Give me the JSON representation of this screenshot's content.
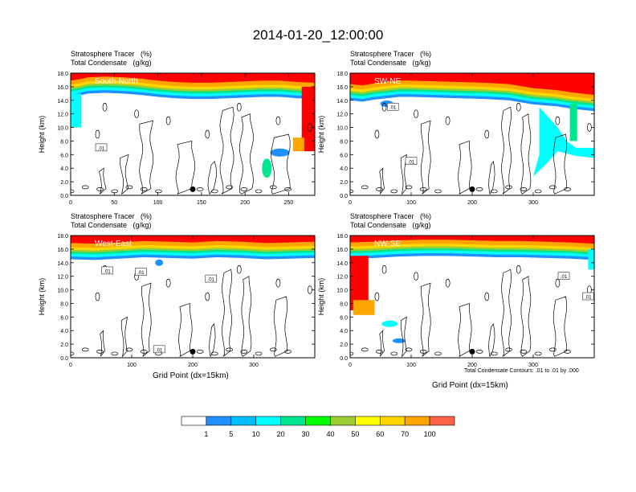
{
  "title": "2014-01-20_12:00:00",
  "panel_header": {
    "line1": "Stratosphere Tracer   (%)",
    "line2": "Total Condensate   (g/kg)"
  },
  "xlabel": "Grid Point (dx=15km)",
  "ylabel": "Height (km)",
  "footnote": "Total Condensate Contours: .01 to .01 by .000",
  "contour_label": ".01",
  "colors": {
    "levels": [
      "#ffffff",
      "#1e90ff",
      "#00bfff",
      "#00ffff",
      "#00e68c",
      "#00ff00",
      "#9acd32",
      "#ffff00",
      "#ffd700",
      "#ffa500",
      "#ff6347",
      "#ff0000"
    ]
  },
  "chart_data": [
    {
      "type": "heatmap",
      "panel": "South-North",
      "label": "South-North",
      "xlim": [
        0,
        280
      ],
      "ylim": [
        0,
        18
      ],
      "xticks": [
        0,
        50,
        100,
        150,
        200,
        250
      ],
      "yticks": [
        0.0,
        2.0,
        4.0,
        6.0,
        8.0,
        10.0,
        12.0,
        14.0,
        16.0,
        18.0
      ],
      "ytick_labels": [
        "0.0",
        "2.0",
        "4.0",
        "6.0",
        "8.0",
        "10.0",
        "12.0",
        "14.0",
        "16.0",
        "18.0"
      ],
      "marker_x": 140,
      "tropopause": [
        [
          0,
          15.3
        ],
        [
          10,
          15.5
        ],
        [
          20,
          15.8
        ],
        [
          40,
          15.9
        ],
        [
          60,
          15.8
        ],
        [
          80,
          15.6
        ],
        [
          100,
          15.3
        ],
        [
          120,
          15.1
        ],
        [
          140,
          15.0
        ],
        [
          160,
          15.0
        ],
        [
          180,
          15.1
        ],
        [
          200,
          15.2
        ],
        [
          220,
          15.3
        ],
        [
          240,
          15.3
        ],
        [
          260,
          15.1
        ],
        [
          280,
          15.0
        ]
      ],
      "contour_labels_x": [
        35
      ],
      "contour_labels_y": [
        7.0
      ]
    },
    {
      "type": "heatmap",
      "panel": "SW-NE",
      "label": "SW-NE",
      "xlim": [
        0,
        400
      ],
      "ylim": [
        0,
        18
      ],
      "xticks": [
        0,
        100,
        200,
        300
      ],
      "yticks": [
        0.0,
        2.0,
        4.0,
        6.0,
        8.0,
        10.0,
        12.0,
        14.0,
        16.0,
        18.0
      ],
      "ytick_labels": [
        "0.0",
        "2.0",
        "4.0",
        "6.0",
        "8.0",
        "10.0",
        "12.0",
        "14.0",
        "16.0",
        "18.0"
      ],
      "marker_x": 200,
      "tropopause": [
        [
          0,
          14.8
        ],
        [
          20,
          14.6
        ],
        [
          40,
          14.9
        ],
        [
          60,
          15.1
        ],
        [
          80,
          15.3
        ],
        [
          100,
          15.3
        ],
        [
          140,
          15.2
        ],
        [
          180,
          15.1
        ],
        [
          220,
          15.0
        ],
        [
          260,
          14.8
        ],
        [
          300,
          14.2
        ],
        [
          340,
          13.9
        ],
        [
          360,
          13.6
        ],
        [
          380,
          13.4
        ],
        [
          400,
          13.2
        ]
      ],
      "contour_labels_x": [
        70,
        100
      ],
      "contour_labels_y": [
        13.0,
        5.0
      ]
    },
    {
      "type": "heatmap",
      "panel": "West-East",
      "label": "West-East",
      "xlim": [
        0,
        400
      ],
      "ylim": [
        0,
        18
      ],
      "xticks": [
        0,
        100,
        200,
        300
      ],
      "yticks": [
        0.0,
        2.0,
        4.0,
        6.0,
        8.0,
        10.0,
        12.0,
        14.0,
        16.0,
        18.0
      ],
      "ytick_labels": [
        "0.0",
        "2.0",
        "4.0",
        "6.0",
        "8.0",
        "10.0",
        "12.0",
        "14.0",
        "16.0",
        "18.0"
      ],
      "marker_x": 200,
      "tropopause": [
        [
          0,
          15.3
        ],
        [
          40,
          15.2
        ],
        [
          80,
          15.4
        ],
        [
          120,
          15.6
        ],
        [
          160,
          15.5
        ],
        [
          200,
          15.4
        ],
        [
          240,
          15.6
        ],
        [
          280,
          15.5
        ],
        [
          320,
          15.3
        ],
        [
          360,
          15.4
        ],
        [
          400,
          15.5
        ]
      ],
      "contour_labels_x": [
        60,
        115,
        230,
        145
      ],
      "contour_labels_y": [
        12.8,
        12.6,
        11.6,
        1.2
      ]
    },
    {
      "type": "heatmap",
      "panel": "NW-SE",
      "label": "NW-SE",
      "xlim": [
        0,
        400
      ],
      "ylim": [
        0,
        18
      ],
      "xticks": [
        0,
        100,
        200,
        300
      ],
      "yticks": [
        0.0,
        2.0,
        4.0,
        6.0,
        8.0,
        10.0,
        12.0,
        14.0,
        16.0,
        18.0
      ],
      "ytick_labels": [
        "0.0",
        "2.0",
        "4.0",
        "6.0",
        "8.0",
        "10.0",
        "12.0",
        "14.0",
        "16.0",
        "18.0"
      ],
      "marker_x": 200,
      "tropopause": [
        [
          0,
          15.4
        ],
        [
          40,
          15.5
        ],
        [
          80,
          15.7
        ],
        [
          120,
          15.8
        ],
        [
          160,
          15.8
        ],
        [
          200,
          15.7
        ],
        [
          240,
          15.6
        ],
        [
          280,
          15.6
        ],
        [
          320,
          15.5
        ],
        [
          360,
          15.4
        ],
        [
          400,
          15.2
        ]
      ],
      "contour_labels_x": [
        350,
        390
      ],
      "contour_labels_y": [
        12.0,
        9.0
      ]
    }
  ],
  "colorbar": {
    "labels": [
      "1",
      "5",
      "10",
      "20",
      "30",
      "40",
      "50",
      "60",
      "70",
      "100"
    ]
  }
}
